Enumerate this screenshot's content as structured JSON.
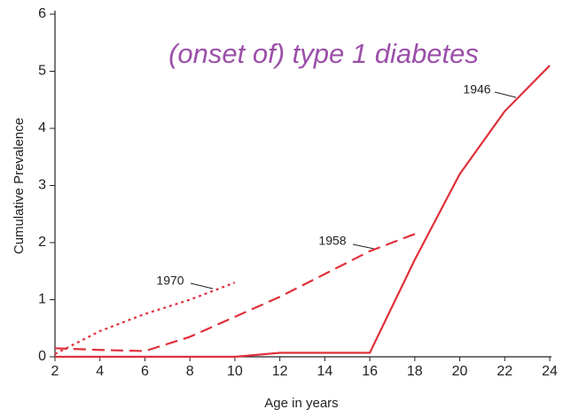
{
  "chart_data": {
    "type": "line",
    "title": "(onset of) type 1 diabetes",
    "x_label": "Age in years",
    "y_label": "Cumulative Prevalence",
    "xlim": [
      2,
      24
    ],
    "xticks": [
      2,
      4,
      6,
      8,
      10,
      12,
      14,
      16,
      18,
      20,
      22,
      24
    ],
    "ylim": [
      0,
      6
    ],
    "yticks": [
      0,
      1,
      2,
      3,
      4,
      5,
      6
    ],
    "series": [
      {
        "name": "1946",
        "color": "#e0303a",
        "dash": "solid",
        "x": [
          2,
          4,
          6,
          8,
          10,
          12,
          14,
          16,
          18,
          20,
          22,
          24
        ],
        "values": [
          0,
          0,
          0,
          0,
          0,
          0.07,
          0.07,
          0.07,
          1.7,
          3.2,
          4.3,
          5.1
        ]
      },
      {
        "name": "1958",
        "color": "#e0303a",
        "dash": "dashed",
        "x": [
          2,
          4,
          6,
          8,
          10,
          12,
          14,
          16,
          18
        ],
        "values": [
          0.15,
          0.12,
          0.1,
          0.35,
          0.7,
          1.05,
          1.45,
          1.85,
          2.15
        ]
      },
      {
        "name": "1970",
        "color": "#e0303a",
        "dash": "dotted",
        "x": [
          2,
          4,
          6,
          8,
          10
        ],
        "values": [
          0.05,
          0.45,
          0.75,
          1.0,
          1.3
        ]
      }
    ]
  }
}
